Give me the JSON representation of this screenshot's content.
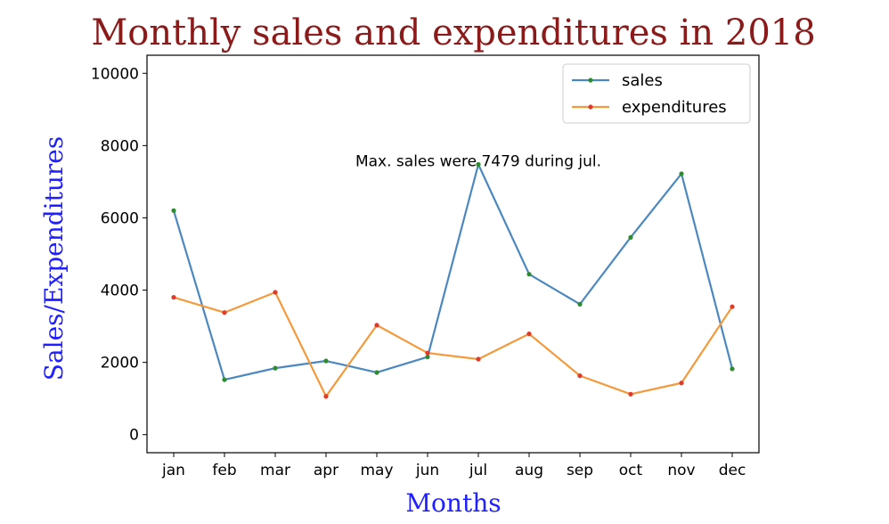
{
  "chart_data": {
    "type": "line",
    "title": "Monthly sales and expenditures in 2018",
    "title_color": "#8b1a1a",
    "xlabel": "Months",
    "ylabel": "Sales/Expenditures",
    "label_color": "#1f1fff",
    "categories": [
      "jan",
      "feb",
      "mar",
      "apr",
      "may",
      "jun",
      "jul",
      "aug",
      "sep",
      "oct",
      "nov",
      "dec"
    ],
    "ylim": [
      -500,
      10500
    ],
    "yticks": [
      0,
      2000,
      4000,
      6000,
      8000,
      10000
    ],
    "grid": false,
    "legend_position": "upper right",
    "series": [
      {
        "name": "sales",
        "color": "#4c88c0",
        "marker_color": "#2e8b2e",
        "values": [
          6200,
          1520,
          1840,
          2040,
          1720,
          2150,
          7479,
          4440,
          3610,
          5460,
          7220,
          1820
        ]
      },
      {
        "name": "expenditures",
        "color": "#f59a3c",
        "marker_color": "#e03a2a",
        "values": [
          3800,
          3380,
          3940,
          1060,
          3030,
          2260,
          2090,
          2790,
          1630,
          1120,
          1430,
          3540
        ]
      }
    ],
    "annotation": {
      "text": "Max. sales were 7479 during jul.",
      "x": "jul",
      "y": 7479
    }
  }
}
